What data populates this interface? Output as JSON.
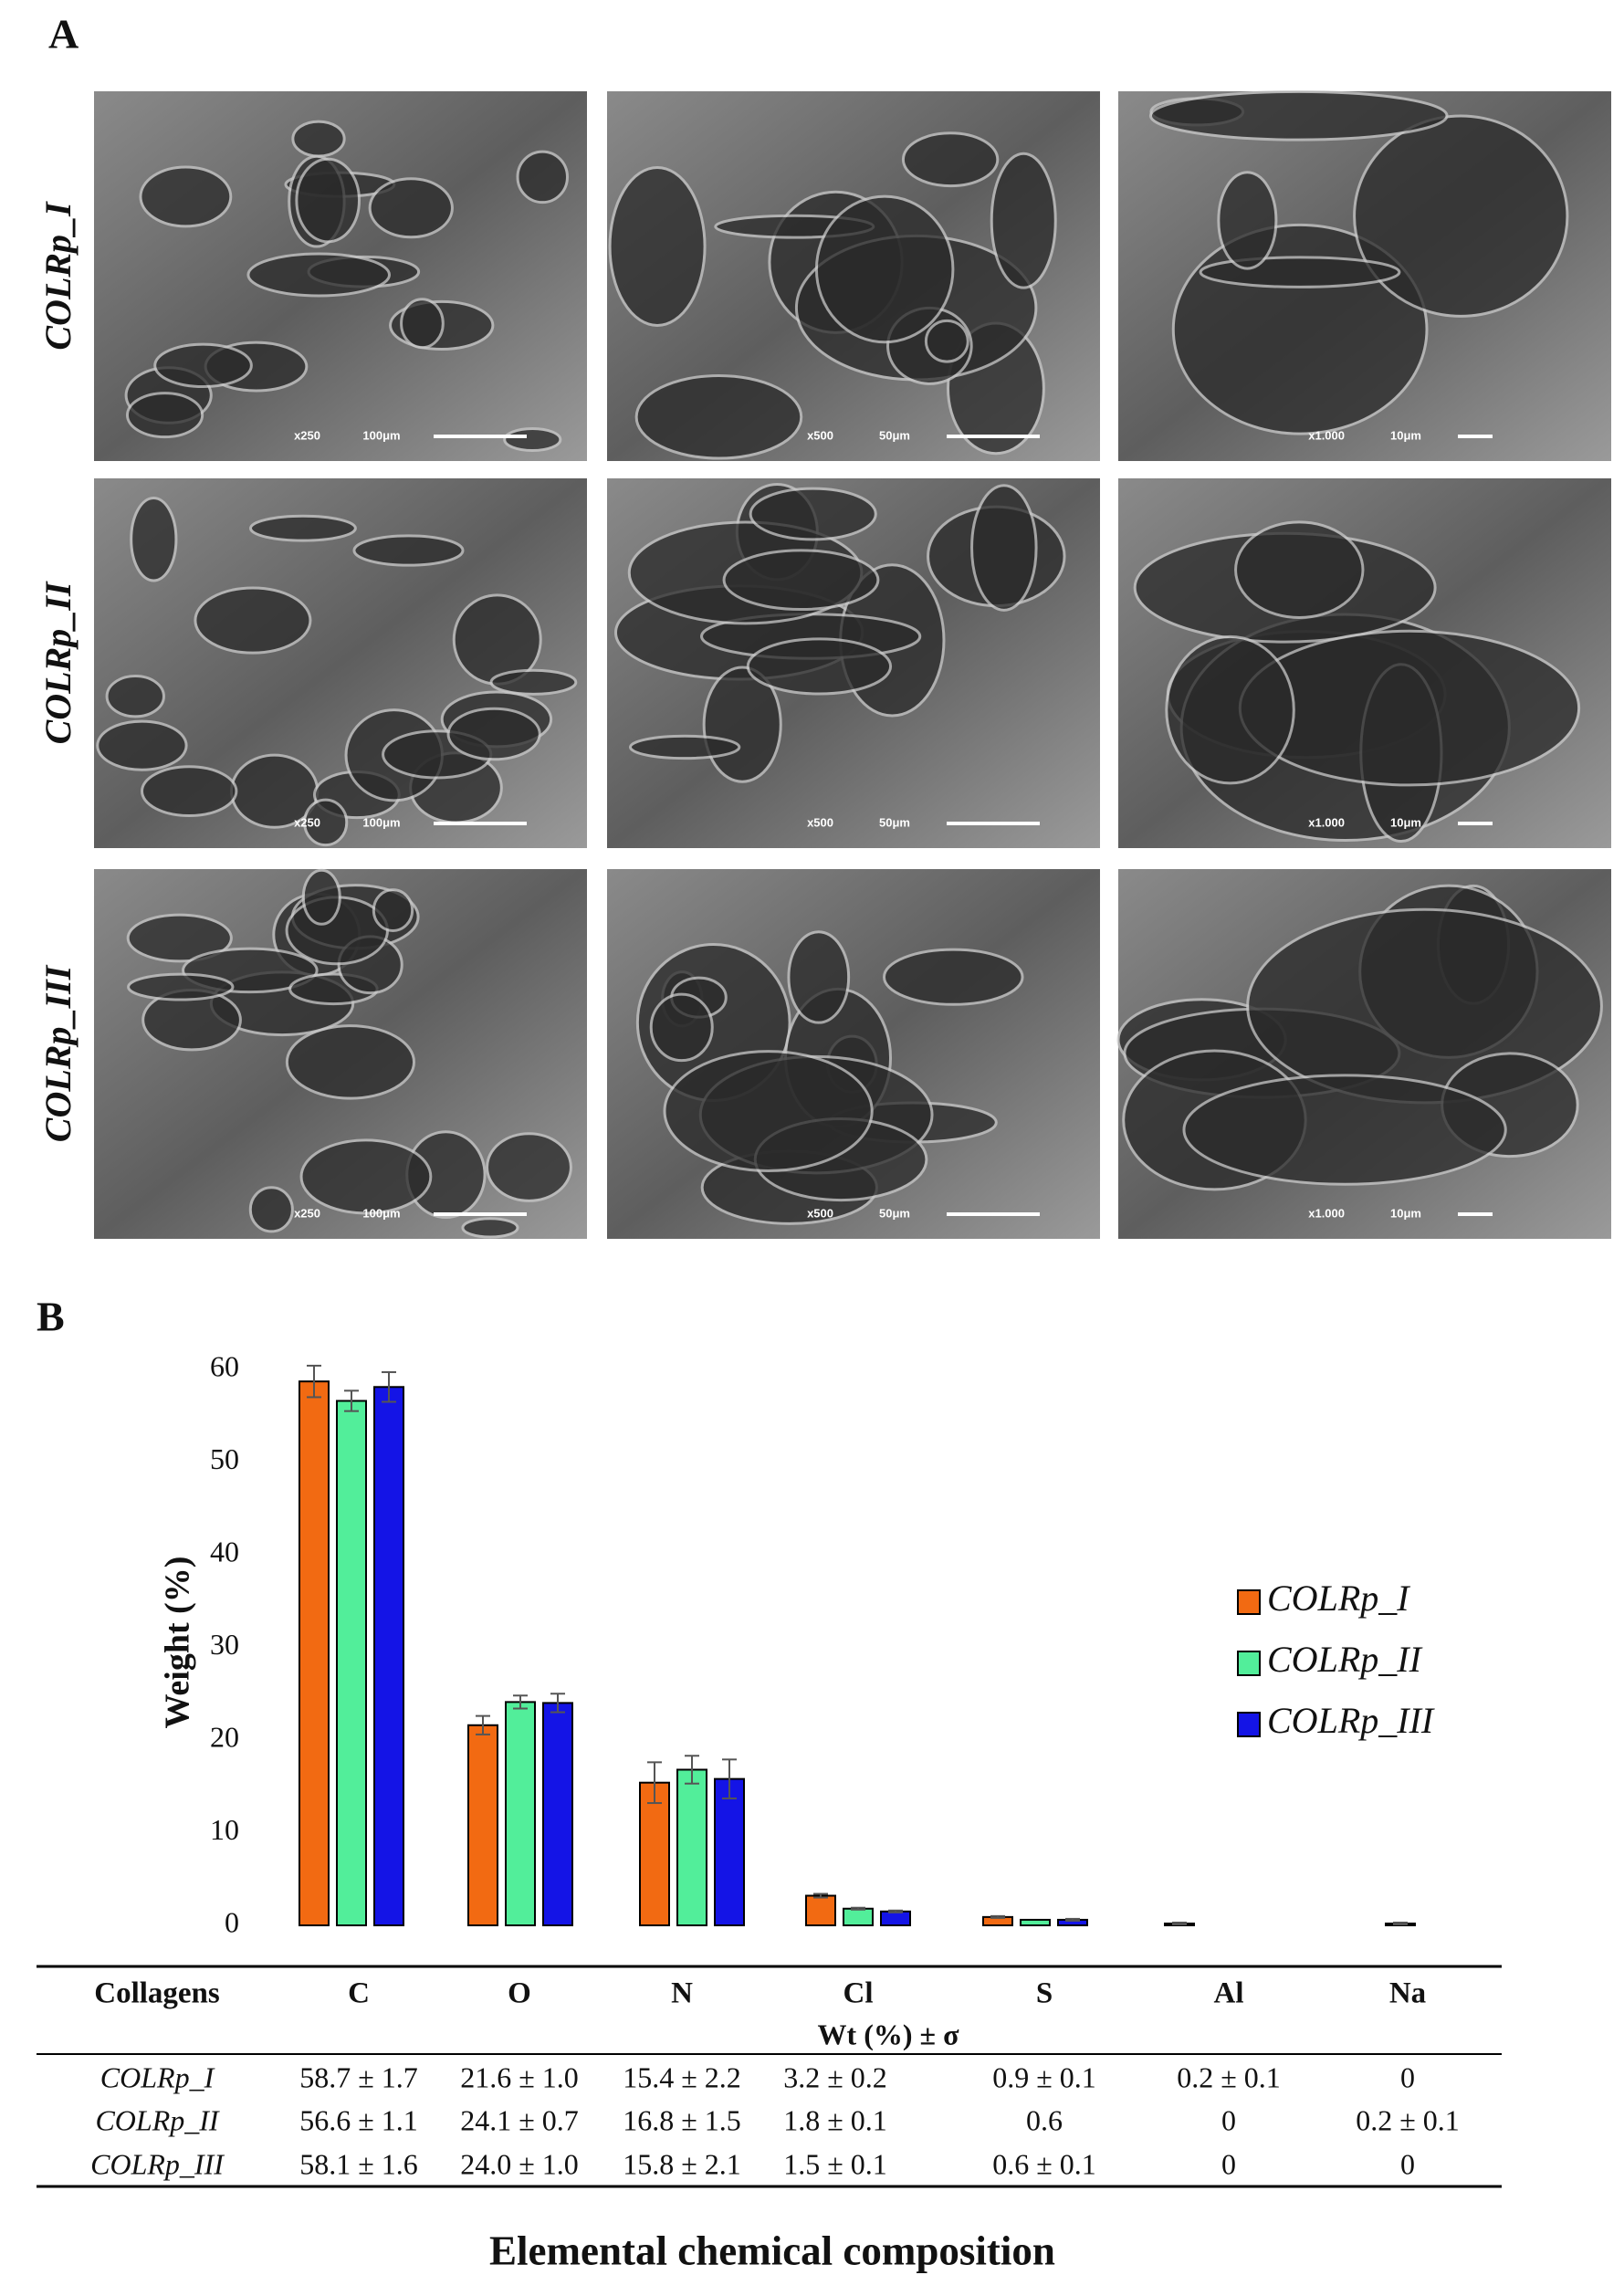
{
  "panel_a": {
    "label": "A",
    "row_labels": [
      "COLRp_I",
      "COLRp_II",
      "COLRp_III"
    ],
    "magnifications": [
      "x250",
      "x500",
      "x1.000"
    ],
    "scale_bars": [
      "100μm",
      "50μm",
      "10μm"
    ]
  },
  "panel_b_label": "B",
  "chart_data": {
    "type": "bar",
    "y_label": "Weight (%)",
    "categories": [
      "C",
      "O",
      "N",
      "Cl",
      "S",
      "Al",
      "Na"
    ],
    "series": [
      {
        "name": "COLRp_I",
        "color": "#f26a12",
        "values": [
          58.7,
          21.6,
          15.4,
          3.2,
          0.9,
          0.2,
          0
        ],
        "errors": [
          1.7,
          1.0,
          2.2,
          0.2,
          0.1,
          0.1,
          null
        ]
      },
      {
        "name": "COLRp_II",
        "color": "#52ee9a",
        "values": [
          56.6,
          24.1,
          16.8,
          1.8,
          0.6,
          0,
          0.2
        ],
        "errors": [
          1.1,
          0.7,
          1.5,
          0.1,
          null,
          null,
          0.1
        ]
      },
      {
        "name": "COLRp_III",
        "color": "#1414e6",
        "values": [
          58.1,
          24.0,
          15.8,
          1.5,
          0.6,
          0,
          0
        ],
        "errors": [
          1.6,
          1.0,
          2.1,
          0.1,
          0.1,
          null,
          null
        ]
      }
    ],
    "ylim": [
      0,
      60
    ],
    "yticks": [
      0,
      10,
      20,
      30,
      40,
      50,
      60
    ],
    "grid": false,
    "legend": "right"
  },
  "table": {
    "header": [
      "Collagens",
      "C",
      "O",
      "N",
      "Cl",
      "S",
      "Al",
      "Na"
    ],
    "subheader": "Wt (%) ± σ",
    "rows": [
      [
        "COLRp_I",
        "58.7 ± 1.7",
        "21.6 ± 1.0",
        "15.4 ± 2.2",
        "3.2 ± 0.2",
        "0.9 ± 0.1",
        "0.2 ± 0.1",
        "0"
      ],
      [
        "COLRp_II",
        "56.6 ± 1.1",
        "24.1 ± 0.7",
        "16.8 ± 1.5",
        "1.8 ± 0.1",
        "0.6",
        "0",
        "0.2 ± 0.1"
      ],
      [
        "COLRp_III",
        "58.1 ± 1.6",
        "24.0 ± 1.0",
        "15.8 ± 2.1",
        "1.5 ± 0.1",
        "0.6 ± 0.1",
        "0",
        "0"
      ]
    ]
  },
  "caption": "Elemental chemical composition"
}
